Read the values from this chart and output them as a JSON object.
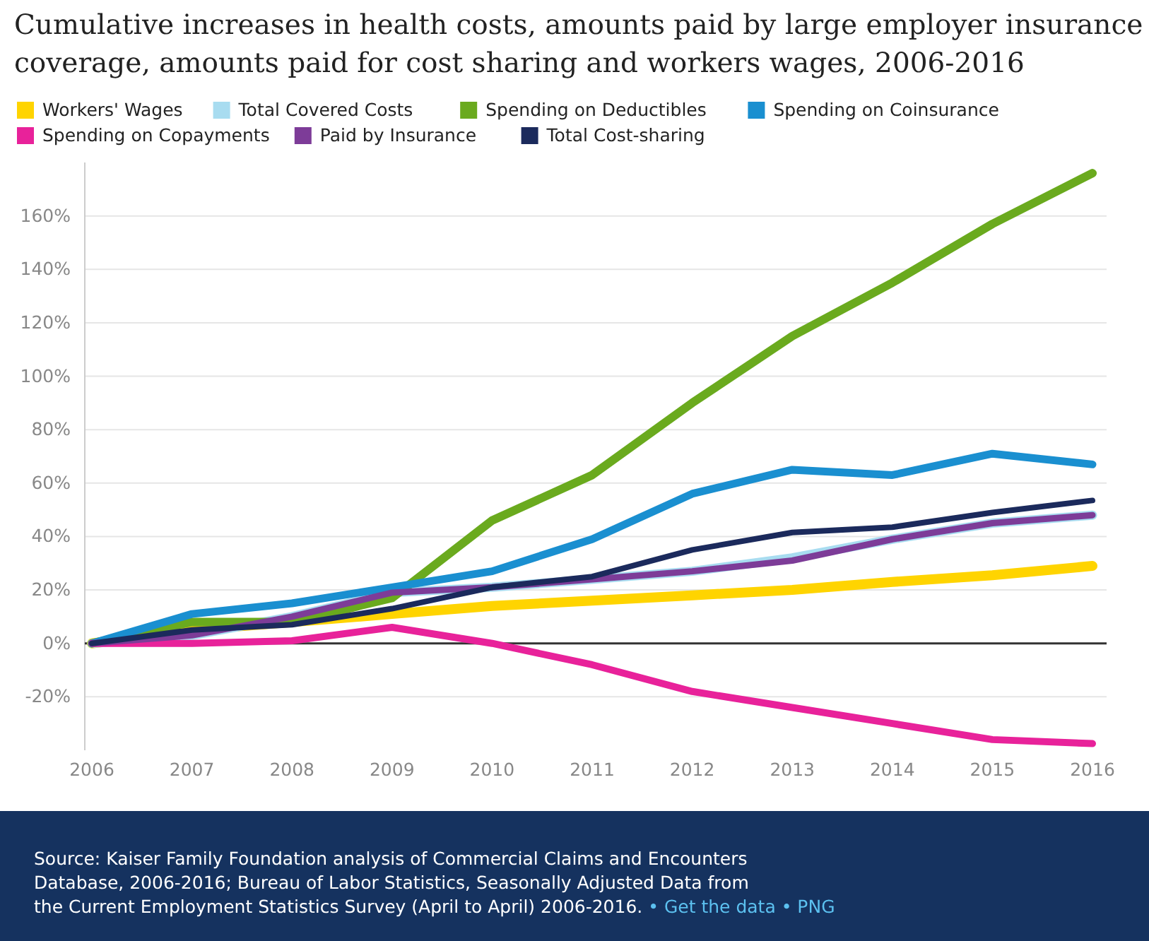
{
  "chart_data": {
    "type": "line",
    "title": "Cumulative increases in health costs, amounts paid by large employer insurance coverage, amounts paid for cost sharing and workers wages, 2006-2016",
    "x": [
      2006,
      2007,
      2008,
      2009,
      2010,
      2011,
      2012,
      2013,
      2014,
      2015,
      2016
    ],
    "xlim": [
      2006,
      2016
    ],
    "xticks": [
      2006,
      2007,
      2008,
      2009,
      2010,
      2011,
      2012,
      2013,
      2014,
      2015,
      2016
    ],
    "ylim": [
      -40,
      180
    ],
    "yticks": [
      {
        "value": -20,
        "label": "-20%"
      },
      {
        "value": 0,
        "label": "0%"
      },
      {
        "value": 20,
        "label": "20%"
      },
      {
        "value": 40,
        "label": "40%"
      },
      {
        "value": 60,
        "label": "60%"
      },
      {
        "value": 80,
        "label": "80%"
      },
      {
        "value": 100,
        "label": "100%"
      },
      {
        "value": 120,
        "label": "120%"
      },
      {
        "value": 140,
        "label": "140%"
      },
      {
        "value": 160,
        "label": "160%"
      }
    ],
    "grid": "y",
    "legend": "top",
    "marker": "none",
    "line_style": "solid",
    "ref_lines": [
      {
        "axis": "y",
        "value": 0,
        "color": "#333333"
      }
    ],
    "series": [
      {
        "name": "Workers' Wages",
        "color": "#ffd400",
        "values": [
          0,
          5,
          8,
          11,
          14,
          16,
          18,
          20,
          23,
          25.5,
          29
        ]
      },
      {
        "name": "Total Covered Costs",
        "color": "#a8dcf0",
        "values": [
          0,
          3,
          10,
          19,
          21,
          24,
          27,
          32,
          39,
          45,
          48
        ]
      },
      {
        "name": "Spending on Deductibles",
        "color": "#6aaa1e",
        "values": [
          0,
          8,
          8,
          17,
          46,
          63,
          90,
          115,
          135,
          157,
          176
        ]
      },
      {
        "name": "Spending on Coinsurance",
        "color": "#1a8fd0",
        "values": [
          0,
          11,
          15,
          21,
          27,
          39,
          56,
          65,
          63,
          71,
          67
        ]
      },
      {
        "name": "Spending on Copayments",
        "color": "#e8229a",
        "values": [
          0,
          0,
          1,
          6,
          0,
          -8,
          -18,
          -24,
          -30,
          -36,
          -37.5
        ]
      },
      {
        "name": "Paid by Insurance",
        "color": "#7d3c98",
        "values": [
          0,
          3,
          10,
          19,
          21,
          24,
          27,
          31,
          39,
          45,
          48
        ]
      },
      {
        "name": "Total Cost-sharing",
        "color": "#1b2a5c",
        "values": [
          0,
          5,
          7,
          13,
          21,
          25,
          35,
          41.5,
          43.5,
          49,
          53.5
        ]
      }
    ],
    "annotations": [
      "Source: Kaiser Family Foundation analysis of Commercial Claims and Encounters Database, 2006-2016; Bureau of Labor Statistics, Seasonally Adjusted Data from the Current Employment Statistics Survey (April to April) 2006-2016.",
      "• Get the data • PNG"
    ]
  }
}
